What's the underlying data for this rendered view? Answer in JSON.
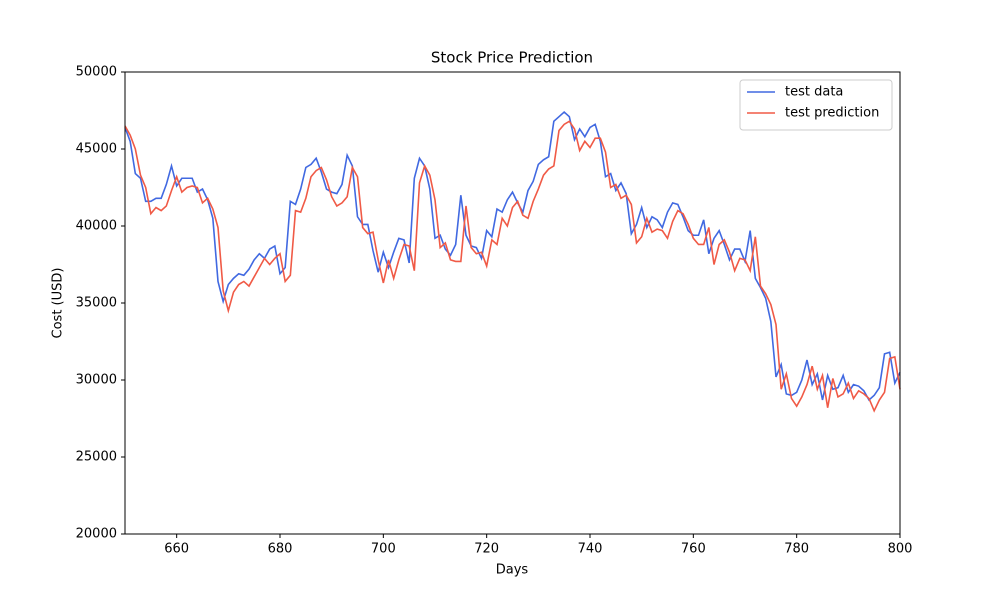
{
  "chart_data": {
    "type": "line",
    "title": "Stock Price Prediction",
    "x_label": "Days",
    "y_label": "Cost (USD)",
    "x": [
      650,
      651,
      652,
      653,
      654,
      655,
      656,
      657,
      658,
      659,
      660,
      661,
      662,
      663,
      664,
      665,
      666,
      667,
      668,
      669,
      670,
      671,
      672,
      673,
      674,
      675,
      676,
      677,
      678,
      679,
      680,
      681,
      682,
      683,
      684,
      685,
      686,
      687,
      688,
      689,
      690,
      691,
      692,
      693,
      694,
      695,
      696,
      697,
      698,
      699,
      700,
      701,
      702,
      703,
      704,
      705,
      706,
      707,
      708,
      709,
      710,
      711,
      712,
      713,
      714,
      715,
      716,
      717,
      718,
      719,
      720,
      721,
      722,
      723,
      724,
      725,
      726,
      727,
      728,
      729,
      730,
      731,
      732,
      733,
      734,
      735,
      736,
      737,
      738,
      739,
      740,
      741,
      742,
      743,
      744,
      745,
      746,
      747,
      748,
      749,
      750,
      751,
      752,
      753,
      754,
      755,
      756,
      757,
      758,
      759,
      760,
      761,
      762,
      763,
      764,
      765,
      766,
      767,
      768,
      769,
      770,
      771,
      772,
      773,
      774,
      775,
      776,
      777,
      778,
      779,
      780,
      781,
      782,
      783,
      784,
      785,
      786,
      787,
      788,
      789,
      790,
      791,
      792,
      793,
      794,
      795,
      796,
      797,
      798,
      799,
      800
    ],
    "series": [
      {
        "name": "test data",
        "color": "#4169e1",
        "values": [
          46400,
          45500,
          43400,
          43100,
          41600,
          41600,
          41800,
          41800,
          42700,
          43900,
          42600,
          43100,
          43100,
          43100,
          42200,
          42400,
          41700,
          40500,
          36400,
          35100,
          36200,
          36600,
          36900,
          36800,
          37200,
          37800,
          38200,
          37900,
          38500,
          38700,
          36900,
          37300,
          41600,
          41400,
          42400,
          43800,
          44000,
          44400,
          43500,
          42400,
          42200,
          42100,
          42700,
          44600,
          43900,
          40600,
          40100,
          40100,
          38400,
          37000,
          38300,
          37300,
          38300,
          39200,
          39100,
          37600,
          43100,
          44400,
          43900,
          42400,
          39200,
          39400,
          38500,
          38100,
          38800,
          42000,
          39400,
          38700,
          38600,
          37900,
          39700,
          39300,
          41100,
          40900,
          41700,
          42200,
          41500,
          40900,
          42300,
          42900,
          44000,
          44300,
          44500,
          46800,
          47100,
          47400,
          47100,
          45600,
          46300,
          45800,
          46400,
          46600,
          45500,
          43200,
          43400,
          42300,
          42800,
          42100,
          39500,
          40100,
          41200,
          39900,
          40600,
          40400,
          39900,
          40900,
          41500,
          41400,
          40600,
          39700,
          39400,
          39400,
          40400,
          38200,
          39200,
          39700,
          38800,
          37800,
          38500,
          38500,
          37700,
          39700,
          36600,
          36000,
          35300,
          33800,
          30200,
          31000,
          29100,
          29000,
          29200,
          30000,
          31300,
          29700,
          30400,
          28700,
          30300,
          29400,
          29500,
          30300,
          29200,
          29700,
          29600,
          29300,
          28700,
          29000,
          29500,
          31700,
          31800,
          29800,
          30500
        ]
      },
      {
        "name": "test prediction",
        "color": "#f05a46",
        "values": [
          46500,
          45900,
          45000,
          43300,
          42500,
          40800,
          41200,
          41000,
          41300,
          42300,
          43200,
          42200,
          42500,
          42600,
          42500,
          41500,
          41800,
          41100,
          39900,
          35800,
          34500,
          35700,
          36200,
          36400,
          36100,
          36700,
          37300,
          37900,
          37500,
          37900,
          38200,
          36400,
          36800,
          41000,
          40900,
          41800,
          43200,
          43600,
          43800,
          43000,
          41900,
          41300,
          41500,
          41900,
          43800,
          43200,
          39900,
          39500,
          39600,
          37800,
          36300,
          37800,
          36600,
          37800,
          38800,
          38700,
          37100,
          42800,
          43900,
          43300,
          41700,
          38600,
          38900,
          37800,
          37700,
          37700,
          41300,
          38600,
          38200,
          38300,
          37400,
          39100,
          38800,
          40500,
          40000,
          41200,
          41600,
          40700,
          40500,
          41600,
          42400,
          43300,
          43700,
          43900,
          46200,
          46600,
          46800,
          46300,
          44900,
          45500,
          45100,
          45700,
          45700,
          44800,
          42500,
          42700,
          41800,
          42000,
          41400,
          38900,
          39300,
          40500,
          39600,
          39800,
          39700,
          39200,
          40300,
          41000,
          40800,
          40100,
          39200,
          38800,
          38800,
          39900,
          37500,
          38800,
          39100,
          38300,
          37100,
          37900,
          37800,
          37100,
          39300,
          36100,
          35600,
          34900,
          33600,
          29400,
          30400,
          28800,
          28300,
          28900,
          29700,
          30900,
          29400,
          30300,
          28200,
          30100,
          28900,
          29100,
          29800,
          28800,
          29300,
          29100,
          28800,
          28000,
          28700,
          29200,
          31400,
          31500,
          29400
        ]
      }
    ],
    "xlim": [
      650,
      800
    ],
    "xticks": [
      660,
      680,
      700,
      720,
      740,
      760,
      780,
      800
    ],
    "ylim": [
      20000,
      50000
    ],
    "yticks": [
      20000,
      25000,
      30000,
      35000,
      40000,
      45000,
      50000
    ],
    "legend": "upper right"
  }
}
